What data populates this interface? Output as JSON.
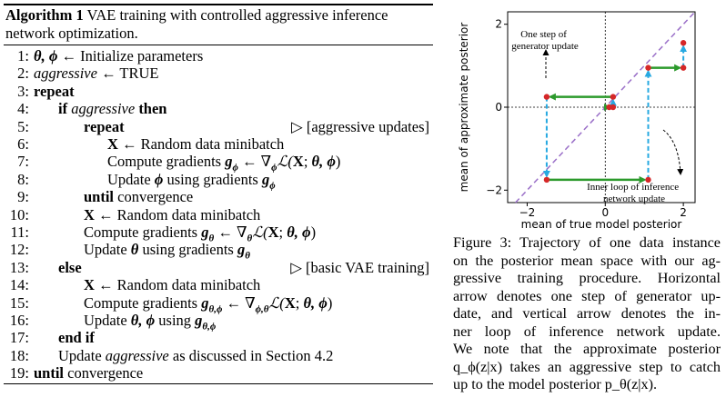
{
  "algorithm": {
    "label": "Algorithm 1",
    "title": "VAE training with controlled aggressive inference network optimization.",
    "lines": [
      {
        "num": "1:",
        "indent": 0,
        "parts": [
          {
            "t": "θ, ϕ",
            "s": "bi"
          },
          {
            "t": " ← Initialize parameters"
          }
        ]
      },
      {
        "num": "2:",
        "indent": 0,
        "parts": [
          {
            "t": "aggressive",
            "s": "it"
          },
          {
            "t": " ← TRUE"
          }
        ]
      },
      {
        "num": "3:",
        "indent": 0,
        "parts": [
          {
            "t": "repeat",
            "s": "kw"
          }
        ]
      },
      {
        "num": "4:",
        "indent": 1,
        "parts": [
          {
            "t": "if ",
            "s": "kw"
          },
          {
            "t": "aggressive",
            "s": "it"
          },
          {
            "t": " then",
            "s": "kw"
          }
        ]
      },
      {
        "num": "5:",
        "indent": 2,
        "parts": [
          {
            "t": "repeat",
            "s": "kw"
          }
        ],
        "comment": "▷ [aggressive updates]"
      },
      {
        "num": "6:",
        "indent": 3,
        "parts": [
          {
            "t": "X",
            "s": "bold"
          },
          {
            "t": " ← Random data minibatch"
          }
        ]
      },
      {
        "num": "7:",
        "indent": 3,
        "parts": [
          {
            "t": "Compute gradients "
          },
          {
            "t": "g",
            "s": "bi"
          },
          {
            "t": "ϕ",
            "s": "sub"
          },
          {
            "t": " ← ∇"
          },
          {
            "t": "ϕ",
            "s": "sub"
          },
          {
            "t": "ℒ(",
            "s": "it"
          },
          {
            "t": "X",
            "s": "bold"
          },
          {
            "t": "; "
          },
          {
            "t": "θ, ϕ",
            "s": "bi"
          },
          {
            "t": ")"
          }
        ]
      },
      {
        "num": "8:",
        "indent": 3,
        "parts": [
          {
            "t": "Update "
          },
          {
            "t": "ϕ",
            "s": "bi"
          },
          {
            "t": " using gradients "
          },
          {
            "t": "g",
            "s": "bi"
          },
          {
            "t": "ϕ",
            "s": "sub"
          }
        ]
      },
      {
        "num": "9:",
        "indent": 2,
        "parts": [
          {
            "t": "until",
            "s": "kw"
          },
          {
            "t": " convergence"
          }
        ]
      },
      {
        "num": "10:",
        "indent": 2,
        "parts": [
          {
            "t": "X",
            "s": "bold"
          },
          {
            "t": " ← Random data minibatch"
          }
        ]
      },
      {
        "num": "11:",
        "indent": 2,
        "parts": [
          {
            "t": "Compute gradients "
          },
          {
            "t": "g",
            "s": "bi"
          },
          {
            "t": "θ",
            "s": "sub"
          },
          {
            "t": " ← ∇"
          },
          {
            "t": "θ",
            "s": "sub"
          },
          {
            "t": "ℒ(",
            "s": "it"
          },
          {
            "t": "X",
            "s": "bold"
          },
          {
            "t": "; "
          },
          {
            "t": "θ, ϕ",
            "s": "bi"
          },
          {
            "t": ")"
          }
        ]
      },
      {
        "num": "12:",
        "indent": 2,
        "parts": [
          {
            "t": "Update "
          },
          {
            "t": "θ",
            "s": "bi"
          },
          {
            "t": " using gradients "
          },
          {
            "t": "g",
            "s": "bi"
          },
          {
            "t": "θ",
            "s": "sub"
          }
        ]
      },
      {
        "num": "13:",
        "indent": 1,
        "parts": [
          {
            "t": "else",
            "s": "kw"
          }
        ],
        "comment": "▷ [basic VAE training]"
      },
      {
        "num": "14:",
        "indent": 2,
        "parts": [
          {
            "t": "X",
            "s": "bold"
          },
          {
            "t": " ← Random data minibatch"
          }
        ]
      },
      {
        "num": "15:",
        "indent": 2,
        "parts": [
          {
            "t": "Compute gradients "
          },
          {
            "t": "g",
            "s": "bi"
          },
          {
            "t": "θ,ϕ",
            "s": "sub"
          },
          {
            "t": " ← ∇"
          },
          {
            "t": "ϕ,θ",
            "s": "sub"
          },
          {
            "t": "ℒ(",
            "s": "it"
          },
          {
            "t": "X",
            "s": "bold"
          },
          {
            "t": "; "
          },
          {
            "t": "θ, ϕ",
            "s": "bi"
          },
          {
            "t": ")"
          }
        ]
      },
      {
        "num": "16:",
        "indent": 2,
        "parts": [
          {
            "t": "Update "
          },
          {
            "t": "θ, ϕ",
            "s": "bi"
          },
          {
            "t": " using "
          },
          {
            "t": "g",
            "s": "bi"
          },
          {
            "t": "θ,ϕ",
            "s": "sub"
          }
        ]
      },
      {
        "num": "17:",
        "indent": 1,
        "parts": [
          {
            "t": "end if",
            "s": "kw"
          }
        ]
      },
      {
        "num": "18:",
        "indent": 1,
        "parts": [
          {
            "t": "Update "
          },
          {
            "t": "aggressive",
            "s": "it"
          },
          {
            "t": " as discussed in Section 4.2"
          }
        ]
      },
      {
        "num": "19:",
        "indent": 0,
        "parts": [
          {
            "t": "until",
            "s": "kw"
          },
          {
            "t": " convergence"
          }
        ]
      }
    ]
  },
  "figure": {
    "ylabel": "mean of approximate posterior",
    "xlabel": "mean of true model posterior",
    "xticks": [
      "−2",
      "0",
      "2"
    ],
    "yticks": [
      "2",
      "0",
      "−2"
    ],
    "annotation_generator": [
      "One step of",
      "generator update"
    ],
    "annotation_inference": [
      "Inner loop of inference",
      "network update"
    ],
    "colors": {
      "diagonal": "#9a6fc8",
      "generator": "#2c9a2c",
      "inference": "#27a9e1",
      "point": "#d62728"
    }
  },
  "chart_data": {
    "type": "line",
    "xlabel": "mean of true model posterior",
    "ylabel": "mean of approximate posterior",
    "xlim": [
      -2.5,
      2.3
    ],
    "ylim": [
      -2.3,
      2.3
    ],
    "series": [
      {
        "name": "",
        "x": [
          0.1,
          0.2,
          0.2,
          -1.5,
          -1.5,
          1.1,
          1.1,
          2.0,
          2.0
        ],
        "y": [
          0.0,
          0.0,
          0.25,
          0.25,
          -1.75,
          -1.75,
          0.95,
          0.95,
          1.55
        ]
      }
    ]
  },
  "caption": {
    "lines": [
      "Figure 3: Trajectory of one data instance",
      "on the posterior mean space with our ag-",
      "gressive training procedure. Horizontal",
      "arrow denotes one step of generator up-",
      "date, and vertical arrow denotes the in-",
      "ner loop of inference network update.",
      "We note that the approximate posterior",
      "q_ϕ(z|x) takes an aggressive step to catch",
      "up to the model posterior p_θ(z|x)."
    ]
  }
}
